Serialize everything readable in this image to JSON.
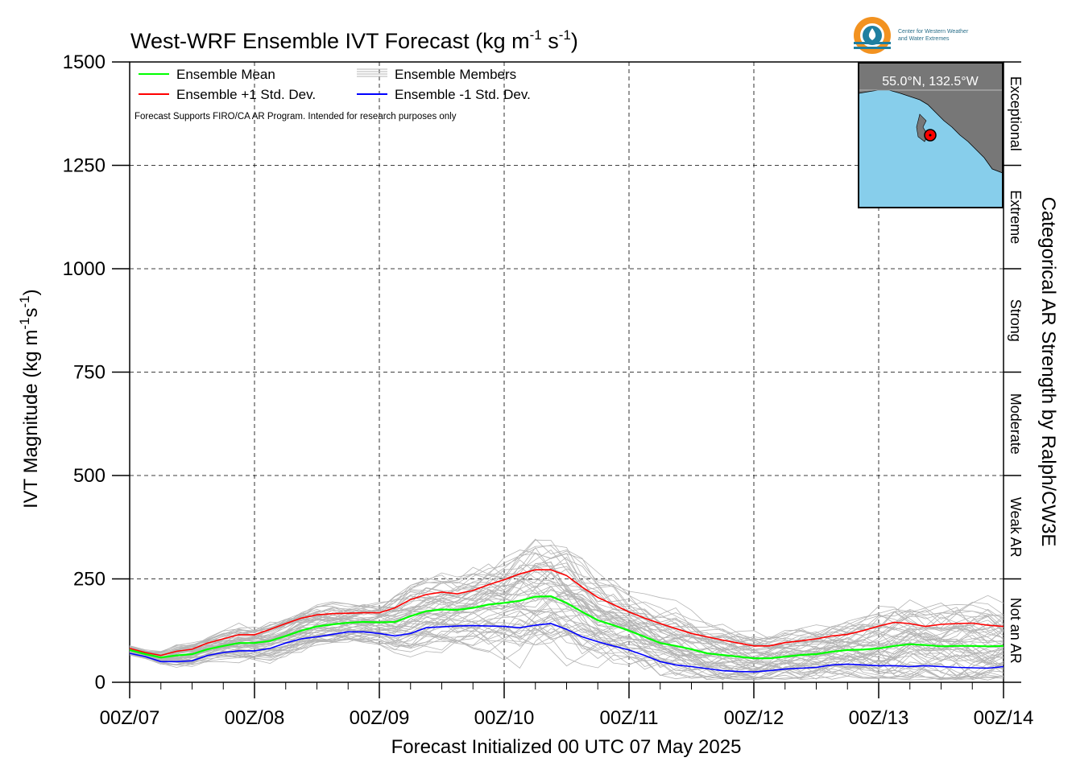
{
  "chart_data": {
    "type": "line",
    "title": "West-WRF Ensemble IVT Forecast (kg m",
    "title_unit_parts": [
      "-1",
      " s",
      "-1",
      ")"
    ],
    "xlabel": "Forecast Initialized 00 UTC 07 May 2025",
    "ylabel": "IVT Magnitude (kg m",
    "ylabel_unit_parts": [
      "-1",
      "s",
      "-1",
      ")"
    ],
    "right_label": "Categorical AR Strength by Ralph/CW3E",
    "x_tick_labels": [
      "00Z/07",
      "00Z/08",
      "00Z/09",
      "00Z/10",
      "00Z/11",
      "00Z/12",
      "00Z/13",
      "00Z/14"
    ],
    "x_range_hours": [
      0,
      168
    ],
    "y_ticks": [
      0,
      250,
      500,
      750,
      1000,
      1250,
      1500
    ],
    "ylim": [
      0,
      1500
    ],
    "grid": true,
    "legend_position": "top-left",
    "note": "Forecast Supports FIRO/CA AR Program. Intended for research purposes only",
    "categories_ar": [
      {
        "label": "Not an AR",
        "from": 0,
        "to": 250
      },
      {
        "label": "Weak AR",
        "from": 250,
        "to": 500
      },
      {
        "label": "Moderate",
        "from": 500,
        "to": 750
      },
      {
        "label": "Strong",
        "from": 750,
        "to": 1000
      },
      {
        "label": "Extreme",
        "from": 1000,
        "to": 1250
      },
      {
        "label": "Exceptional",
        "from": 1250,
        "to": 1500
      }
    ],
    "x_hours": [
      0,
      3,
      6,
      9,
      12,
      15,
      18,
      21,
      24,
      27,
      30,
      33,
      36,
      39,
      42,
      45,
      48,
      51,
      54,
      57,
      60,
      63,
      66,
      69,
      72,
      75,
      78,
      81,
      84,
      87,
      90,
      93,
      96,
      99,
      102,
      105,
      108,
      111,
      114,
      117,
      120,
      123,
      126,
      129,
      132,
      135,
      138,
      141,
      144,
      147,
      150,
      153,
      156,
      159,
      162,
      165,
      168
    ],
    "series": [
      {
        "name": "Ensemble Mean",
        "color": "#00ff00",
        "values": [
          78,
          68,
          60,
          65,
          68,
          80,
          88,
          95,
          95,
          100,
          112,
          125,
          135,
          140,
          144,
          146,
          145,
          146,
          160,
          172,
          176,
          175,
          180,
          188,
          192,
          197,
          207,
          208,
          192,
          170,
          150,
          138,
          125,
          110,
          95,
          88,
          80,
          70,
          66,
          62,
          58,
          58,
          62,
          66,
          68,
          74,
          78,
          79,
          82,
          88,
          92,
          90,
          87,
          88,
          88,
          87,
          88
        ]
      },
      {
        "name": "Ensemble +1 Std. Dev.",
        "color": "#ff0000",
        "values": [
          82,
          72,
          65,
          75,
          80,
          95,
          105,
          115,
          115,
          128,
          142,
          155,
          163,
          166,
          167,
          168,
          168,
          180,
          200,
          212,
          218,
          214,
          222,
          236,
          248,
          262,
          272,
          272,
          258,
          230,
          205,
          188,
          170,
          155,
          142,
          130,
          118,
          110,
          102,
          95,
          88,
          88,
          96,
          100,
          105,
          112,
          116,
          125,
          136,
          145,
          142,
          135,
          140,
          142,
          143,
          138,
          135
        ]
      },
      {
        "name": "Ensemble -1 Std. Dev.",
        "color": "#0000ff",
        "values": [
          70,
          62,
          50,
          50,
          52,
          65,
          72,
          76,
          76,
          82,
          95,
          105,
          110,
          116,
          122,
          122,
          118,
          112,
          118,
          132,
          134,
          136,
          137,
          136,
          135,
          132,
          138,
          142,
          128,
          110,
          98,
          88,
          78,
          65,
          50,
          42,
          38,
          33,
          28,
          26,
          25,
          28,
          32,
          34,
          36,
          42,
          44,
          42,
          40,
          40,
          38,
          40,
          38,
          36,
          35,
          34,
          38
        ]
      }
    ],
    "members_legend": "Ensemble Members",
    "members_color": "#b4b4b4",
    "member_count": 60,
    "location": "55.0°N, 132.5°W",
    "logo_lines": [
      "Center for Western Weather",
      "and Water Extremes"
    ],
    "colors": {
      "map_ocean": "#87ceeb",
      "map_land": "#777777",
      "marker": "#ff0000",
      "logo_orange": "#f29220",
      "logo_teal": "#1f7fa0"
    }
  }
}
